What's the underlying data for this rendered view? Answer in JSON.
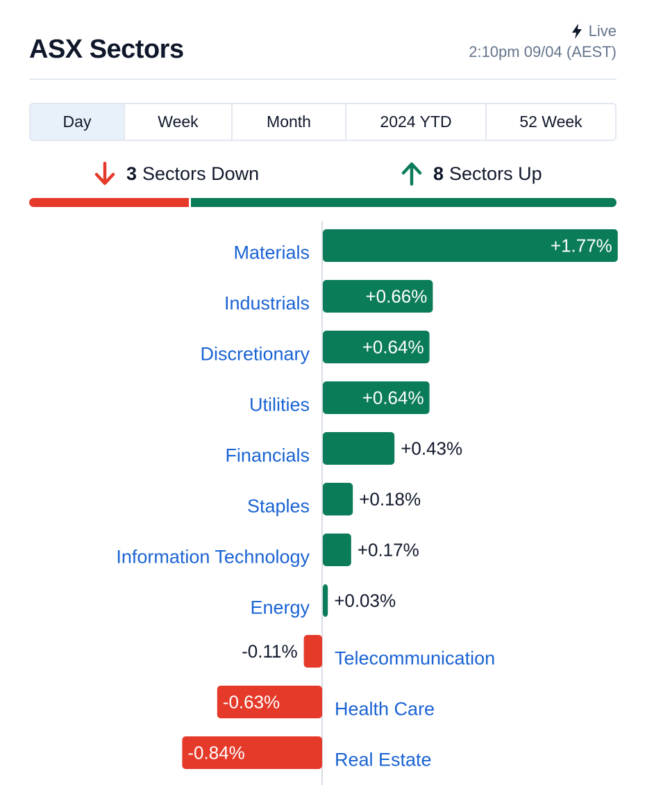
{
  "header": {
    "title": "ASX Sectors",
    "live_label": "Live",
    "timestamp": "2:10pm 09/04 (AEST)"
  },
  "tabs": [
    {
      "label": "Day",
      "active": true
    },
    {
      "label": "Week",
      "active": false
    },
    {
      "label": "Month",
      "active": false
    },
    {
      "label": "2024 YTD",
      "active": false
    },
    {
      "label": "52 Week",
      "active": false
    }
  ],
  "summary": {
    "down_count": "3",
    "down_text": "Sectors Down",
    "up_count": "8",
    "up_text": "Sectors Up"
  },
  "colors": {
    "up": "#0b7c5a",
    "down": "#e53a2a",
    "link": "#1a63d3",
    "muted": "#64748b",
    "tab_active_bg": "#e8f0f9"
  },
  "icons": {
    "live": "lightning-bolt-icon",
    "down": "arrow-down-icon",
    "up": "arrow-up-icon"
  },
  "chart_data": {
    "type": "bar",
    "orientation": "horizontal",
    "categories": [
      "Materials",
      "Industrials",
      "Discretionary",
      "Utilities",
      "Financials",
      "Staples",
      "Information Technology",
      "Energy",
      "Telecommunication",
      "Health Care",
      "Real Estate"
    ],
    "values": [
      1.77,
      0.66,
      0.64,
      0.64,
      0.43,
      0.18,
      0.17,
      0.03,
      -0.11,
      -0.63,
      -0.84
    ],
    "value_labels": [
      "+1.77%",
      "+0.66%",
      "+0.64%",
      "+0.64%",
      "+0.43%",
      "+0.18%",
      "+0.17%",
      "+0.03%",
      "-0.11%",
      "-0.63%",
      "-0.84%"
    ],
    "unit": "%",
    "title": "",
    "xlabel": "",
    "ylabel": "",
    "grid": false,
    "legend": "none"
  }
}
